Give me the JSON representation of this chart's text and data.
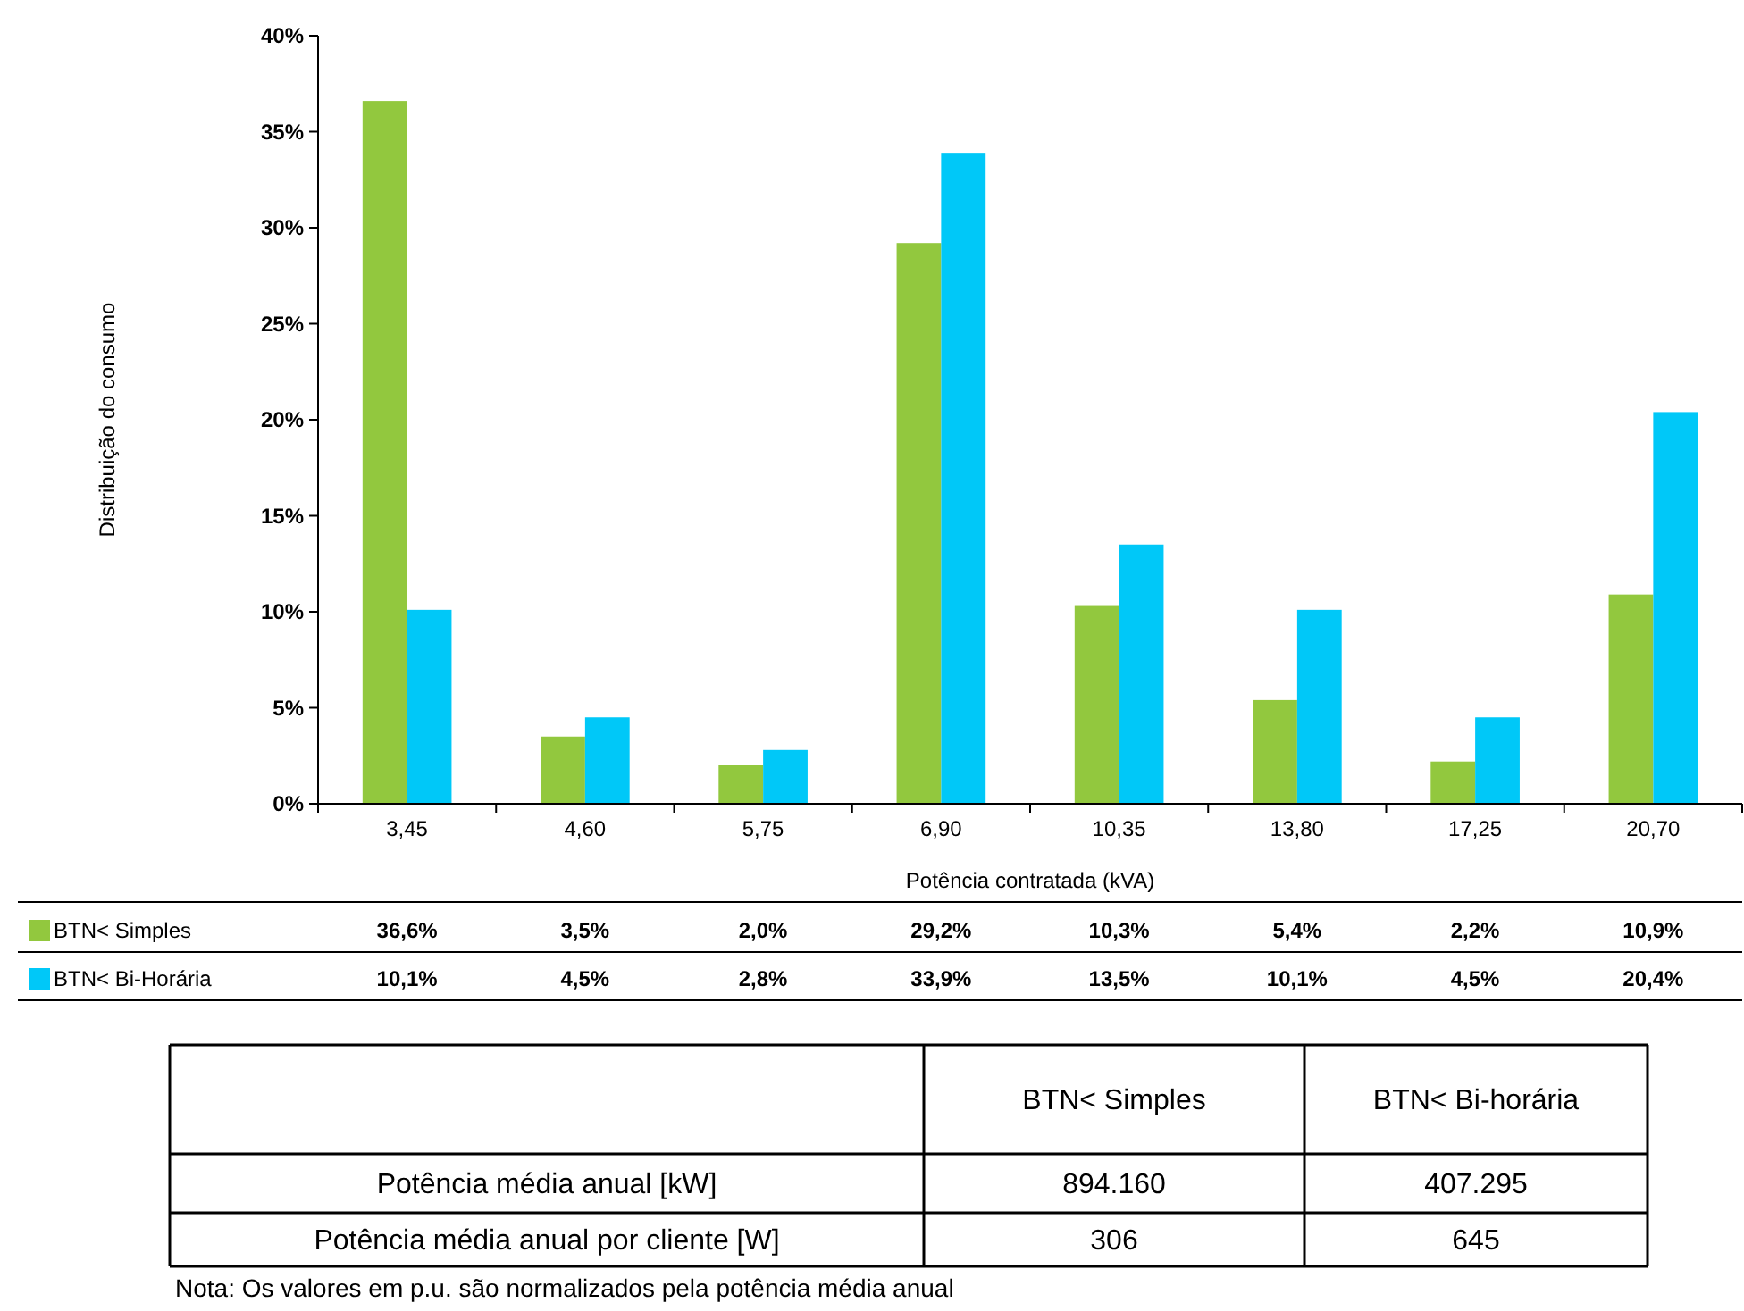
{
  "chart_data": [
    {
      "type": "bar",
      "xlabel": "Potência contratada (kVA)",
      "ylabel": "Distribuição do consumo",
      "categories": [
        "3,45",
        "4,60",
        "5,75",
        "6,90",
        "10,35",
        "13,80",
        "17,25",
        "20,70"
      ],
      "series": [
        {
          "name": "BTN< Simples",
          "color": "#92c83e",
          "values": [
            36.6,
            3.5,
            2.0,
            29.2,
            10.3,
            5.4,
            2.2,
            10.9
          ],
          "value_labels": [
            "36,6%",
            "3,5%",
            "2,0%",
            "29,2%",
            "10,3%",
            "5,4%",
            "2,2%",
            "10,9%"
          ]
        },
        {
          "name": "BTN< Bi-Horária",
          "color": "#00c8f8",
          "values": [
            10.1,
            4.5,
            2.8,
            33.9,
            13.5,
            10.1,
            4.5,
            20.4
          ],
          "value_labels": [
            "10,1%",
            "4,5%",
            "2,8%",
            "33,9%",
            "13,5%",
            "10,1%",
            "4,5%",
            "20,4%"
          ]
        }
      ],
      "ylim": [
        0,
        40
      ],
      "yticks": [
        {
          "value": 0,
          "label": "0%"
        },
        {
          "value": 5,
          "label": "5%"
        },
        {
          "value": 10,
          "label": "10%"
        },
        {
          "value": 15,
          "label": "15%"
        },
        {
          "value": 20,
          "label": "20%"
        },
        {
          "value": 25,
          "label": "25%"
        },
        {
          "value": 30,
          "label": "30%"
        },
        {
          "value": 35,
          "label": "35%"
        },
        {
          "value": 40,
          "label": "40%"
        }
      ],
      "grid": false,
      "legend": "bottom"
    },
    {
      "type": "other",
      "categories": [
        null,
        "BTN< Simples",
        "BTN< Bi-horária"
      ],
      "y_categories": [
        "Potência média anual [kW]",
        "Potência média anual por cliente [W]"
      ],
      "cell_labels": [
        [
          "894.160",
          "407.295"
        ],
        [
          "306",
          "645"
        ]
      ],
      "annotations": [
        "Nota: Os valores em p.u. são normalizados pela potência média anual"
      ]
    }
  ]
}
